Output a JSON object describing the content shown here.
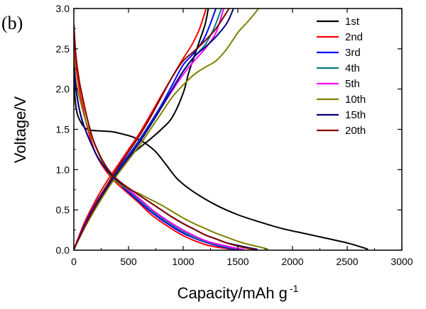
{
  "chart_data": {
    "type": "line",
    "panel_label": "(b)",
    "xlabel": "Capacity/mAh g",
    "xlabel_sup": "-1",
    "ylabel": "Voltage/V",
    "xlim": [
      0,
      3000
    ],
    "ylim": [
      0,
      3.0
    ],
    "x_ticks": [
      0,
      500,
      1000,
      1500,
      2000,
      2500,
      3000
    ],
    "y_ticks": [
      0.0,
      0.5,
      1.0,
      1.5,
      2.0,
      2.5,
      3.0
    ],
    "grid": false,
    "legend_position": "top-right",
    "series": [
      {
        "name": "1st",
        "color": "#000000",
        "discharge": [
          [
            0,
            2.2
          ],
          [
            10,
            1.9
          ],
          [
            30,
            1.7
          ],
          [
            60,
            1.6
          ],
          [
            100,
            1.52
          ],
          [
            150,
            1.49
          ],
          [
            250,
            1.48
          ],
          [
            350,
            1.47
          ],
          [
            450,
            1.44
          ],
          [
            550,
            1.4
          ],
          [
            650,
            1.33
          ],
          [
            750,
            1.22
          ],
          [
            850,
            1.05
          ],
          [
            950,
            0.88
          ],
          [
            1100,
            0.72
          ],
          [
            1300,
            0.56
          ],
          [
            1500,
            0.44
          ],
          [
            1700,
            0.35
          ],
          [
            1900,
            0.27
          ],
          [
            2100,
            0.21
          ],
          [
            2300,
            0.15
          ],
          [
            2500,
            0.09
          ],
          [
            2650,
            0.03
          ],
          [
            2690,
            0.01
          ]
        ],
        "charge": [
          [
            0,
            0.01
          ],
          [
            100,
            0.3
          ],
          [
            200,
            0.55
          ],
          [
            300,
            0.8
          ],
          [
            400,
            1.0
          ],
          [
            500,
            1.15
          ],
          [
            600,
            1.27
          ],
          [
            700,
            1.38
          ],
          [
            800,
            1.5
          ],
          [
            900,
            1.65
          ],
          [
            1000,
            1.95
          ],
          [
            1050,
            2.2
          ],
          [
            1100,
            2.4
          ],
          [
            1150,
            2.6
          ],
          [
            1200,
            2.8
          ],
          [
            1230,
            3.0
          ]
        ]
      },
      {
        "name": "2nd",
        "color": "#ff0000",
        "discharge": [
          [
            0,
            2.75
          ],
          [
            20,
            2.3
          ],
          [
            50,
            2.0
          ],
          [
            80,
            1.8
          ],
          [
            110,
            1.6
          ],
          [
            150,
            1.4
          ],
          [
            200,
            1.2
          ],
          [
            260,
            1.05
          ],
          [
            330,
            0.92
          ],
          [
            400,
            0.82
          ],
          [
            500,
            0.7
          ],
          [
            600,
            0.58
          ],
          [
            700,
            0.45
          ],
          [
            800,
            0.35
          ],
          [
            900,
            0.26
          ],
          [
            1000,
            0.18
          ],
          [
            1100,
            0.12
          ],
          [
            1200,
            0.07
          ],
          [
            1300,
            0.04
          ],
          [
            1400,
            0.02
          ],
          [
            1470,
            0.01
          ]
        ],
        "charge": [
          [
            0,
            0.01
          ],
          [
            100,
            0.35
          ],
          [
            200,
            0.62
          ],
          [
            300,
            0.85
          ],
          [
            400,
            1.05
          ],
          [
            500,
            1.25
          ],
          [
            600,
            1.45
          ],
          [
            700,
            1.68
          ],
          [
            800,
            1.92
          ],
          [
            900,
            2.15
          ],
          [
            1000,
            2.38
          ],
          [
            1080,
            2.55
          ],
          [
            1150,
            2.75
          ],
          [
            1210,
            3.0
          ]
        ]
      },
      {
        "name": "3rd",
        "color": "#0000ff",
        "discharge": [
          [
            0,
            2.3
          ],
          [
            20,
            2.0
          ],
          [
            50,
            1.75
          ],
          [
            90,
            1.55
          ],
          [
            150,
            1.35
          ],
          [
            220,
            1.15
          ],
          [
            300,
            1.0
          ],
          [
            400,
            0.85
          ],
          [
            500,
            0.72
          ],
          [
            600,
            0.6
          ],
          [
            700,
            0.48
          ],
          [
            800,
            0.38
          ],
          [
            900,
            0.29
          ],
          [
            1000,
            0.21
          ],
          [
            1100,
            0.15
          ],
          [
            1200,
            0.1
          ],
          [
            1300,
            0.06
          ],
          [
            1400,
            0.03
          ],
          [
            1500,
            0.01
          ]
        ],
        "charge": [
          [
            0,
            0.01
          ],
          [
            100,
            0.32
          ],
          [
            200,
            0.58
          ],
          [
            300,
            0.8
          ],
          [
            400,
            1.0
          ],
          [
            500,
            1.18
          ],
          [
            600,
            1.37
          ],
          [
            700,
            1.58
          ],
          [
            800,
            1.8
          ],
          [
            900,
            2.05
          ],
          [
            1000,
            2.3
          ],
          [
            1100,
            2.45
          ],
          [
            1200,
            2.65
          ],
          [
            1300,
            3.0
          ]
        ]
      },
      {
        "name": "4th",
        "color": "#008080",
        "discharge": [
          [
            0,
            2.3
          ],
          [
            20,
            2.0
          ],
          [
            50,
            1.75
          ],
          [
            90,
            1.55
          ],
          [
            150,
            1.35
          ],
          [
            220,
            1.15
          ],
          [
            300,
            1.0
          ],
          [
            400,
            0.86
          ],
          [
            500,
            0.74
          ],
          [
            600,
            0.62
          ],
          [
            700,
            0.5
          ],
          [
            800,
            0.4
          ],
          [
            900,
            0.31
          ],
          [
            1000,
            0.23
          ],
          [
            1100,
            0.16
          ],
          [
            1200,
            0.11
          ],
          [
            1300,
            0.07
          ],
          [
            1400,
            0.04
          ],
          [
            1520,
            0.01
          ]
        ],
        "charge": [
          [
            0,
            0.01
          ],
          [
            100,
            0.3
          ],
          [
            200,
            0.56
          ],
          [
            300,
            0.78
          ],
          [
            400,
            0.98
          ],
          [
            500,
            1.16
          ],
          [
            600,
            1.35
          ],
          [
            700,
            1.56
          ],
          [
            800,
            1.78
          ],
          [
            900,
            2.0
          ],
          [
            1000,
            2.22
          ],
          [
            1100,
            2.4
          ],
          [
            1200,
            2.55
          ],
          [
            1280,
            2.75
          ],
          [
            1350,
            3.0
          ]
        ]
      },
      {
        "name": "5th",
        "color": "#ff00ff",
        "discharge": [
          [
            0,
            2.3
          ],
          [
            20,
            2.0
          ],
          [
            50,
            1.75
          ],
          [
            90,
            1.55
          ],
          [
            150,
            1.35
          ],
          [
            220,
            1.15
          ],
          [
            300,
            1.0
          ],
          [
            400,
            0.87
          ],
          [
            500,
            0.75
          ],
          [
            600,
            0.64
          ],
          [
            700,
            0.52
          ],
          [
            800,
            0.42
          ],
          [
            900,
            0.33
          ],
          [
            1000,
            0.25
          ],
          [
            1100,
            0.18
          ],
          [
            1200,
            0.12
          ],
          [
            1300,
            0.08
          ],
          [
            1400,
            0.05
          ],
          [
            1500,
            0.02
          ],
          [
            1560,
            0.01
          ]
        ],
        "charge": [
          [
            0,
            0.01
          ],
          [
            100,
            0.3
          ],
          [
            200,
            0.55
          ],
          [
            300,
            0.77
          ],
          [
            400,
            0.97
          ],
          [
            500,
            1.15
          ],
          [
            600,
            1.34
          ],
          [
            700,
            1.55
          ],
          [
            800,
            1.77
          ],
          [
            900,
            1.98
          ],
          [
            1000,
            2.18
          ],
          [
            1100,
            2.35
          ],
          [
            1200,
            2.5
          ],
          [
            1300,
            2.7
          ],
          [
            1370,
            3.0
          ]
        ]
      },
      {
        "name": "10th",
        "color": "#808000",
        "discharge": [
          [
            0,
            2.45
          ],
          [
            20,
            2.1
          ],
          [
            60,
            1.85
          ],
          [
            110,
            1.6
          ],
          [
            180,
            1.35
          ],
          [
            260,
            1.1
          ],
          [
            340,
            0.92
          ],
          [
            420,
            0.82
          ],
          [
            500,
            0.76
          ],
          [
            600,
            0.7
          ],
          [
            700,
            0.63
          ],
          [
            800,
            0.56
          ],
          [
            900,
            0.48
          ],
          [
            1000,
            0.4
          ],
          [
            1100,
            0.33
          ],
          [
            1200,
            0.27
          ],
          [
            1300,
            0.21
          ],
          [
            1400,
            0.16
          ],
          [
            1500,
            0.11
          ],
          [
            1600,
            0.07
          ],
          [
            1700,
            0.04
          ],
          [
            1780,
            0.01
          ]
        ],
        "charge": [
          [
            0,
            0.01
          ],
          [
            100,
            0.28
          ],
          [
            200,
            0.52
          ],
          [
            300,
            0.74
          ],
          [
            400,
            0.94
          ],
          [
            500,
            1.12
          ],
          [
            600,
            1.3
          ],
          [
            700,
            1.5
          ],
          [
            800,
            1.7
          ],
          [
            900,
            1.9
          ],
          [
            1000,
            2.05
          ],
          [
            1100,
            2.18
          ],
          [
            1200,
            2.27
          ],
          [
            1300,
            2.35
          ],
          [
            1400,
            2.5
          ],
          [
            1500,
            2.7
          ],
          [
            1600,
            2.85
          ],
          [
            1690,
            3.0
          ]
        ]
      },
      {
        "name": "15th",
        "color": "#000080",
        "discharge": [
          [
            0,
            2.3
          ],
          [
            20,
            2.0
          ],
          [
            50,
            1.75
          ],
          [
            90,
            1.55
          ],
          [
            150,
            1.35
          ],
          [
            220,
            1.15
          ],
          [
            300,
            1.0
          ],
          [
            400,
            0.86
          ],
          [
            500,
            0.77
          ],
          [
            600,
            0.68
          ],
          [
            700,
            0.59
          ],
          [
            800,
            0.5
          ],
          [
            900,
            0.41
          ],
          [
            1000,
            0.33
          ],
          [
            1100,
            0.26
          ],
          [
            1200,
            0.19
          ],
          [
            1300,
            0.14
          ],
          [
            1400,
            0.09
          ],
          [
            1500,
            0.06
          ],
          [
            1600,
            0.03
          ],
          [
            1680,
            0.01
          ]
        ],
        "charge": [
          [
            0,
            0.01
          ],
          [
            100,
            0.3
          ],
          [
            200,
            0.55
          ],
          [
            300,
            0.77
          ],
          [
            400,
            0.97
          ],
          [
            500,
            1.15
          ],
          [
            600,
            1.34
          ],
          [
            700,
            1.55
          ],
          [
            800,
            1.77
          ],
          [
            900,
            2.0
          ],
          [
            1000,
            2.22
          ],
          [
            1100,
            2.4
          ],
          [
            1200,
            2.52
          ],
          [
            1300,
            2.65
          ],
          [
            1400,
            2.82
          ],
          [
            1460,
            3.0
          ]
        ]
      },
      {
        "name": "20th",
        "color": "#800000",
        "discharge": [
          [
            0,
            2.8
          ],
          [
            20,
            2.4
          ],
          [
            50,
            2.1
          ],
          [
            80,
            1.9
          ],
          [
            120,
            1.65
          ],
          [
            170,
            1.4
          ],
          [
            230,
            1.2
          ],
          [
            300,
            1.03
          ],
          [
            380,
            0.9
          ],
          [
            480,
            0.79
          ],
          [
            600,
            0.68
          ],
          [
            700,
            0.59
          ],
          [
            800,
            0.5
          ],
          [
            900,
            0.41
          ],
          [
            1000,
            0.33
          ],
          [
            1100,
            0.26
          ],
          [
            1200,
            0.19
          ],
          [
            1300,
            0.14
          ],
          [
            1400,
            0.09
          ],
          [
            1500,
            0.05
          ],
          [
            1600,
            0.02
          ],
          [
            1660,
            0.01
          ]
        ],
        "charge": [
          [
            0,
            0.01
          ],
          [
            100,
            0.3
          ],
          [
            200,
            0.56
          ],
          [
            300,
            0.8
          ],
          [
            400,
            1.02
          ],
          [
            500,
            1.22
          ],
          [
            600,
            1.42
          ],
          [
            700,
            1.65
          ],
          [
            800,
            1.9
          ],
          [
            900,
            2.15
          ],
          [
            1000,
            2.35
          ],
          [
            1100,
            2.47
          ],
          [
            1200,
            2.6
          ],
          [
            1300,
            2.75
          ],
          [
            1420,
            3.0
          ]
        ]
      }
    ]
  }
}
